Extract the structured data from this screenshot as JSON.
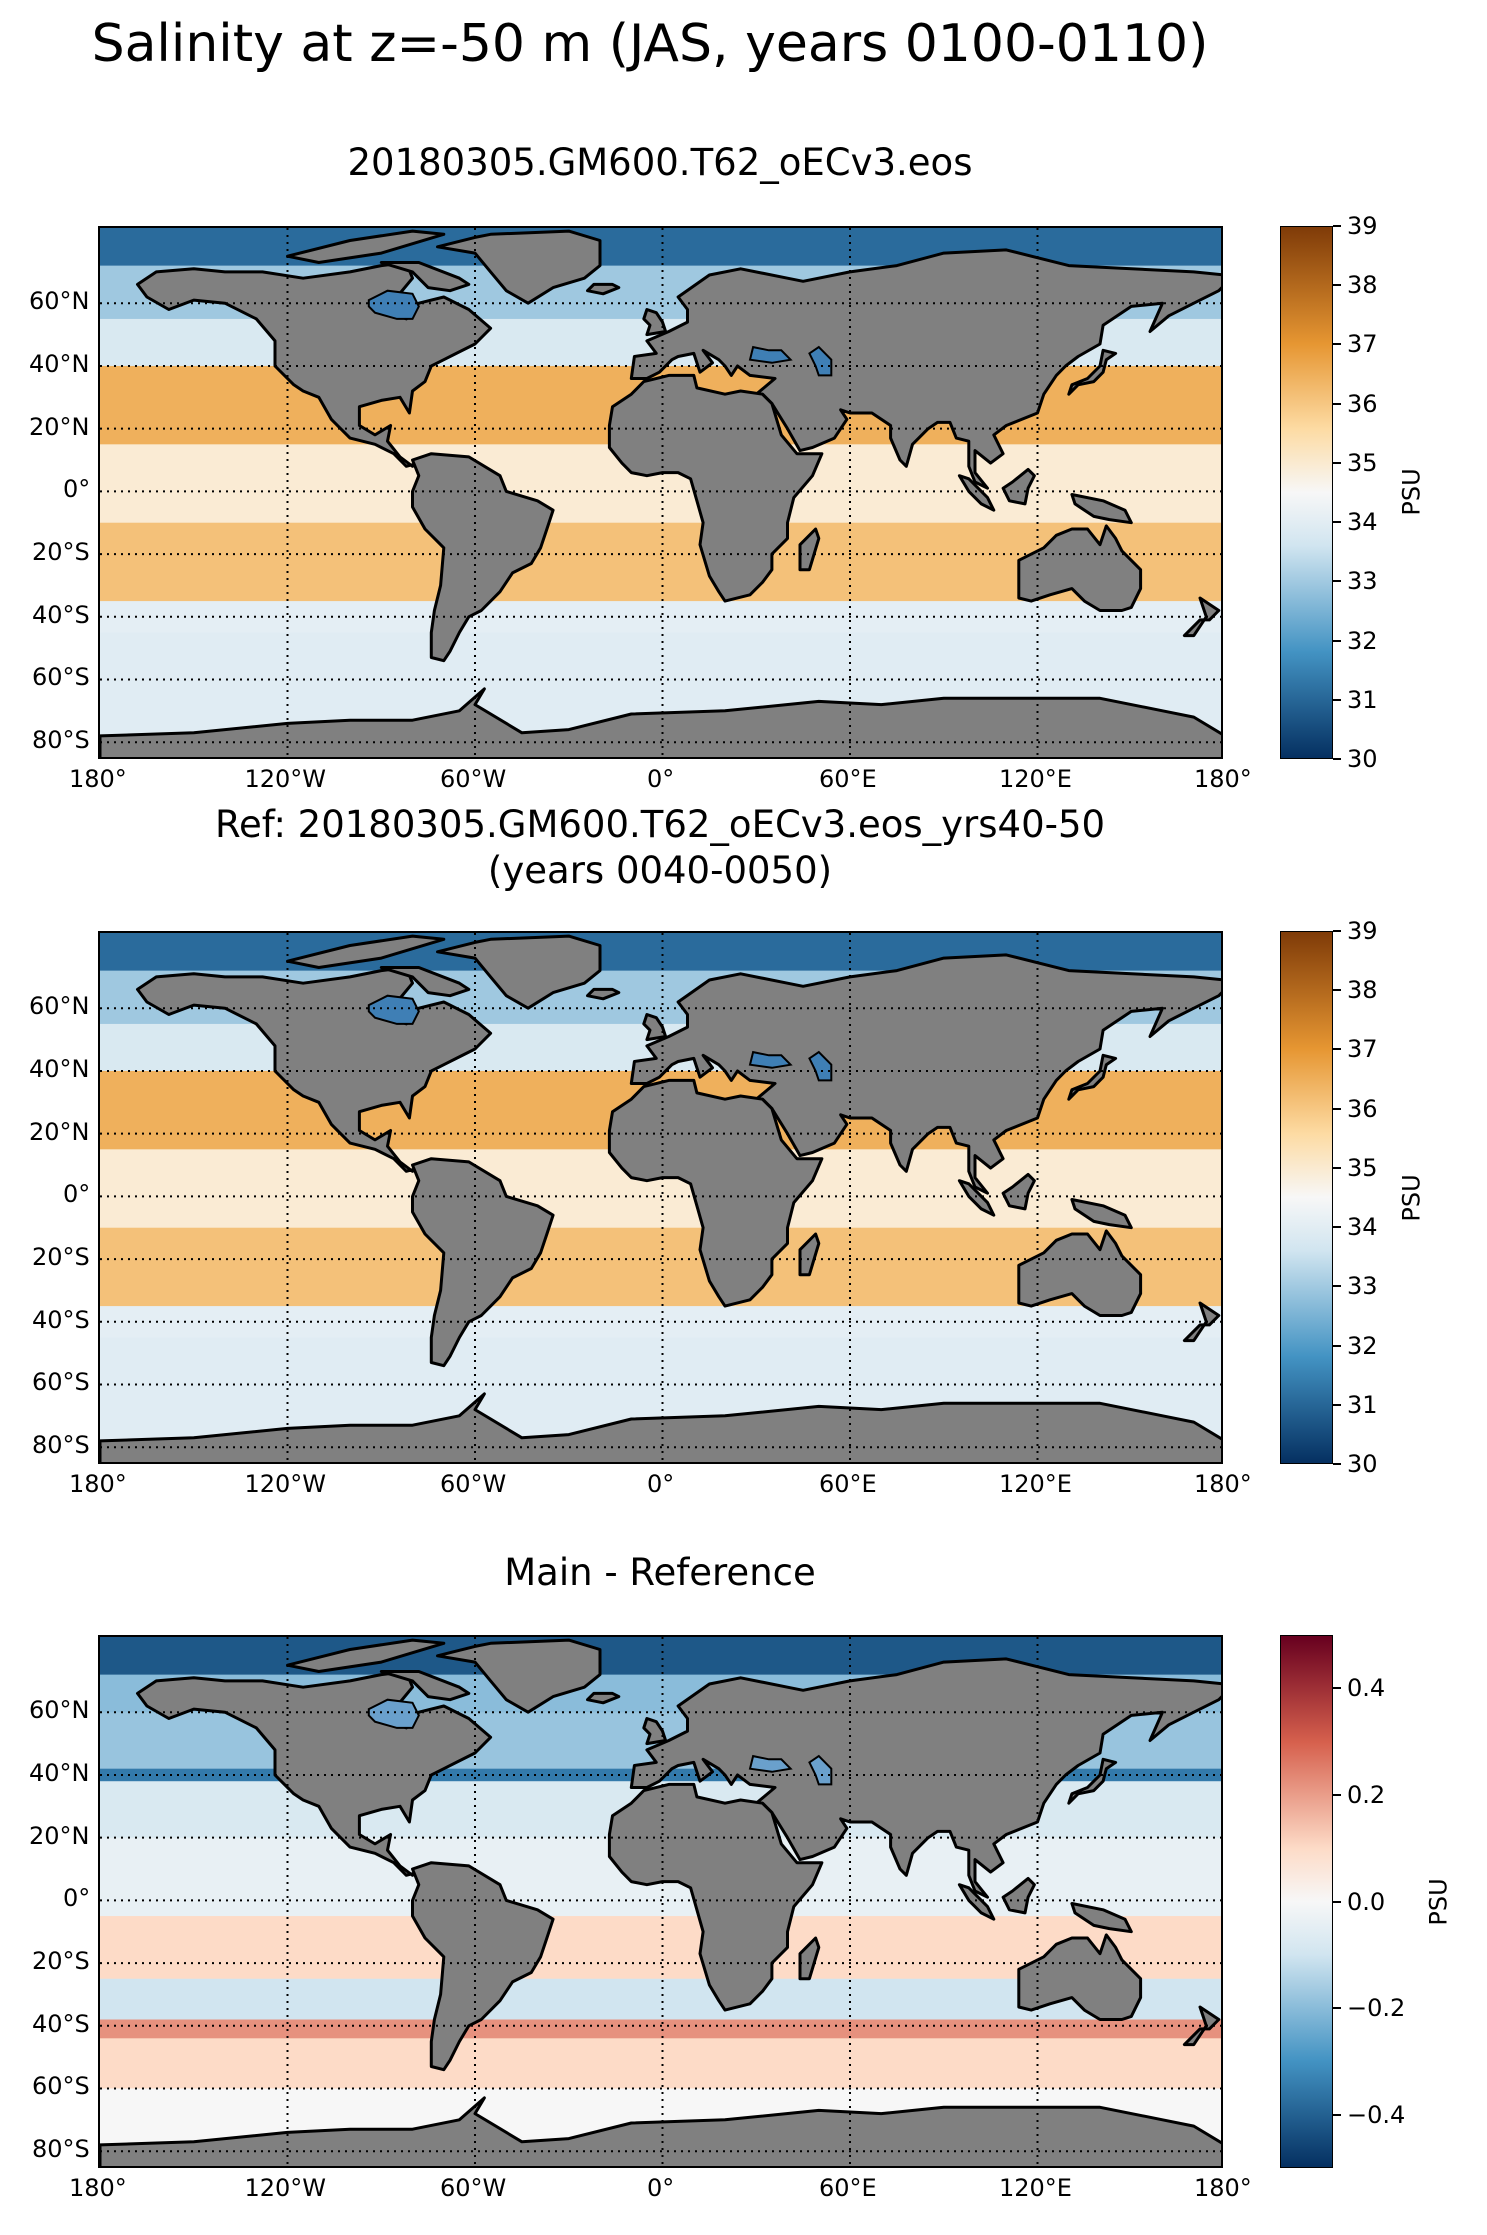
{
  "title": "Salinity at z=-50 m (JAS, years 0100-0110)",
  "colors": {
    "land": "#808080",
    "coast": "#000000",
    "grid": "#000000"
  },
  "chart_data": [
    {
      "type": "heatmap",
      "title": "20180305.GM600.T62_oECv3.eos",
      "colormap": "BrBG_r (blue-white-orange)",
      "colorbar_label": "PSU",
      "vmin": 30,
      "vmax": 39,
      "colorbar_ticks": [
        "39",
        "38",
        "37",
        "36",
        "35",
        "34",
        "33",
        "32",
        "31",
        "30"
      ],
      "lon_ticks": [
        "180°",
        "120°W",
        "60°W",
        "0°",
        "60°E",
        "120°E",
        "180°"
      ],
      "lat_ticks": [
        "60°N",
        "40°N",
        "20°N",
        "0°",
        "20°S",
        "40°S",
        "60°S",
        "80°S"
      ],
      "grid": "dotted"
    },
    {
      "type": "heatmap",
      "title": "Ref: 20180305.GM600.T62_oECv3.eos_yrs40-50",
      "subtitle": "(years 0040-0050)",
      "colormap": "BrBG_r (blue-white-orange)",
      "colorbar_label": "PSU",
      "vmin": 30,
      "vmax": 39,
      "colorbar_ticks": [
        "39",
        "38",
        "37",
        "36",
        "35",
        "34",
        "33",
        "32",
        "31",
        "30"
      ],
      "lon_ticks": [
        "180°",
        "120°W",
        "60°W",
        "0°",
        "60°E",
        "120°E",
        "180°"
      ],
      "lat_ticks": [
        "60°N",
        "40°N",
        "20°N",
        "0°",
        "20°S",
        "40°S",
        "60°S",
        "80°S"
      ],
      "grid": "dotted"
    },
    {
      "type": "heatmap",
      "title": "Main - Reference",
      "colormap": "RdBu_r",
      "colorbar_label": "PSU",
      "vmin": -0.5,
      "vmax": 0.5,
      "colorbar_ticks": [
        "0.4",
        "0.2",
        "0.0",
        "−0.2",
        "−0.4"
      ],
      "lon_ticks": [
        "180°",
        "120°W",
        "60°W",
        "0°",
        "60°E",
        "120°E",
        "180°"
      ],
      "lat_ticks": [
        "60°N",
        "40°N",
        "20°N",
        "0°",
        "20°S",
        "40°S",
        "60°S",
        "80°S"
      ],
      "grid": "dotted"
    }
  ]
}
